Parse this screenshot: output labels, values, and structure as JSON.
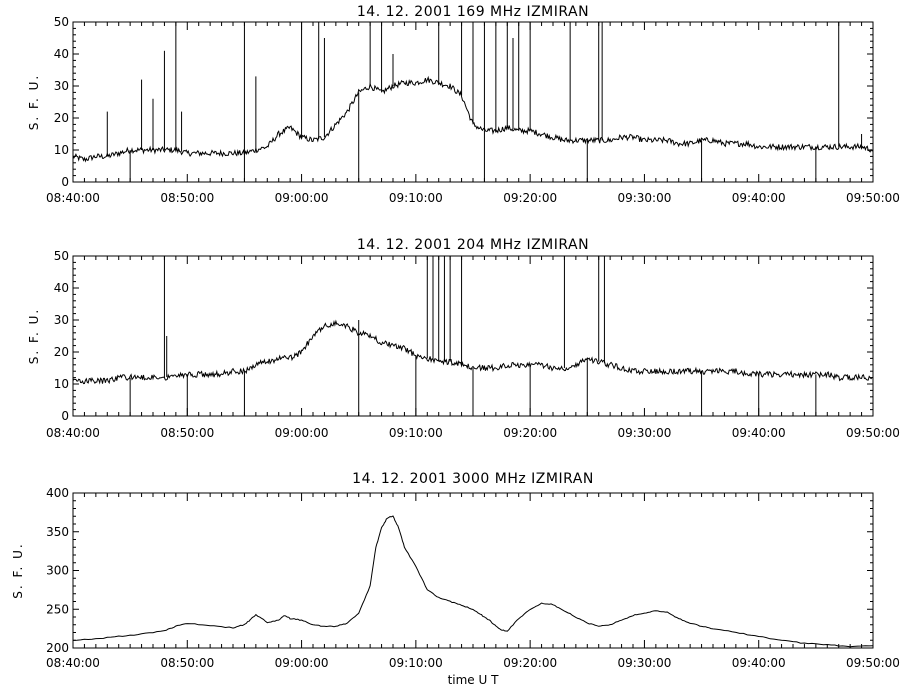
{
  "chart_data": [
    {
      "type": "line",
      "title": "14.  12.  2001    169 MHz    IZMIRAN",
      "ylabel": "S. F. U.",
      "xlabel": "",
      "ylim": [
        0,
        50
      ],
      "yticks": [
        0,
        10,
        20,
        30,
        40,
        50
      ],
      "xlim_minutes": [
        0,
        70
      ],
      "xticks": [
        "08:40:00",
        "08:50:00",
        "09:00:00",
        "09:10:00",
        "09:20:00",
        "09:30:00",
        "09:40:00",
        "09:50:00"
      ],
      "grid": false,
      "series": [
        {
          "values_x_minutes": [
            0,
            1,
            2,
            3,
            4,
            5,
            6,
            7,
            8,
            9,
            10,
            11,
            12,
            13,
            14,
            15,
            16,
            17,
            18,
            19,
            20,
            21,
            22,
            23,
            24,
            25,
            26,
            27,
            28,
            29,
            30,
            31,
            32,
            33,
            34,
            35,
            36,
            37,
            38,
            39,
            40,
            41,
            42,
            43,
            44,
            45,
            46,
            47,
            48,
            49,
            50,
            51,
            52,
            53,
            54,
            55,
            56,
            57,
            58,
            59,
            60,
            61,
            62,
            63,
            64,
            65,
            66,
            67,
            68,
            69,
            70
          ],
          "values_y": [
            8,
            7,
            8,
            8,
            9,
            10,
            10,
            10,
            10,
            10,
            9,
            9,
            9,
            9,
            9,
            9,
            10,
            11,
            15,
            17,
            14,
            13,
            14,
            18,
            22,
            28,
            30,
            28,
            30,
            31,
            31,
            32,
            31,
            30,
            27,
            18,
            16,
            16,
            17,
            16,
            16,
            15,
            14,
            13,
            13,
            13,
            13,
            13,
            14,
            14,
            13,
            13,
            13,
            12,
            12,
            13,
            13,
            12,
            12,
            12,
            11,
            11,
            11,
            11,
            11,
            11,
            11,
            11,
            11,
            11,
            10
          ]
        }
      ],
      "spikes_minutes_and_peak": [
        [
          3,
          22
        ],
        [
          6,
          32
        ],
        [
          7,
          26
        ],
        [
          8,
          41
        ],
        [
          9,
          50
        ],
        [
          9.5,
          22
        ],
        [
          15,
          50
        ],
        [
          16,
          33
        ],
        [
          20,
          50
        ],
        [
          21.5,
          50
        ],
        [
          22,
          45
        ],
        [
          26,
          50
        ],
        [
          27,
          50
        ],
        [
          28,
          40
        ],
        [
          32,
          50
        ],
        [
          34,
          50
        ],
        [
          35,
          50
        ],
        [
          36,
          50
        ],
        [
          37,
          50
        ],
        [
          38,
          50
        ],
        [
          38.5,
          45
        ],
        [
          39,
          50
        ],
        [
          40,
          50
        ],
        [
          43.5,
          50
        ],
        [
          46,
          50
        ],
        [
          46.3,
          50
        ],
        [
          67,
          50
        ],
        [
          69,
          15
        ]
      ]
    },
    {
      "type": "line",
      "title": "14.  12.  2001    204 MHz    IZMIRAN",
      "ylabel": "S. F. U.",
      "xlabel": "",
      "ylim": [
        0,
        50
      ],
      "yticks": [
        0,
        10,
        20,
        30,
        40,
        50
      ],
      "xlim_minutes": [
        0,
        70
      ],
      "xticks": [
        "08:40:00",
        "08:50:00",
        "09:00:00",
        "09:10:00",
        "09:20:00",
        "09:30:00",
        "09:40:00",
        "09:50:00"
      ],
      "grid": false,
      "series": [
        {
          "values_x_minutes": [
            0,
            1,
            2,
            3,
            4,
            5,
            6,
            7,
            8,
            9,
            10,
            11,
            12,
            13,
            14,
            15,
            16,
            17,
            18,
            19,
            20,
            21,
            22,
            23,
            24,
            25,
            26,
            27,
            28,
            29,
            30,
            31,
            32,
            33,
            34,
            35,
            36,
            37,
            38,
            39,
            40,
            41,
            42,
            43,
            44,
            45,
            46,
            47,
            48,
            49,
            50,
            51,
            52,
            53,
            54,
            55,
            56,
            57,
            58,
            59,
            60,
            61,
            62,
            63,
            64,
            65,
            66,
            67,
            68,
            69,
            70
          ],
          "values_y": [
            11,
            11,
            11,
            11,
            12,
            12,
            12,
            12,
            12,
            13,
            13,
            13,
            13,
            13,
            14,
            14,
            16,
            17,
            18,
            18,
            20,
            25,
            28,
            29,
            28,
            26,
            25,
            23,
            22,
            21,
            19,
            18,
            17,
            17,
            16,
            15,
            15,
            15,
            16,
            16,
            16,
            16,
            15,
            15,
            16,
            18,
            17,
            16,
            15,
            14,
            14,
            14,
            14,
            14,
            14,
            14,
            14,
            14,
            14,
            13,
            13,
            13,
            13,
            13,
            13,
            13,
            13,
            12,
            12,
            12,
            12
          ]
        }
      ],
      "spikes_minutes_and_peak": [
        [
          8,
          50
        ],
        [
          8.2,
          25
        ],
        [
          25,
          30
        ],
        [
          31,
          50
        ],
        [
          31.5,
          50
        ],
        [
          32,
          50
        ],
        [
          32.5,
          50
        ],
        [
          33,
          50
        ],
        [
          34,
          50
        ],
        [
          43,
          50
        ],
        [
          46,
          50
        ],
        [
          46.5,
          50
        ]
      ]
    },
    {
      "type": "line",
      "title": "14.  12.  2001    3000 MHz    IZMIRAN",
      "ylabel": "S. F. U.",
      "xlabel": "time   U T",
      "ylim": [
        200,
        400
      ],
      "yticks": [
        200,
        250,
        300,
        350,
        400
      ],
      "xlim_minutes": [
        0,
        70
      ],
      "xticks": [
        "08:40:00",
        "08:50:00",
        "09:00:00",
        "09:10:00",
        "09:20:00",
        "09:30:00",
        "09:40:00",
        "09:50:00"
      ],
      "grid": false,
      "series": [
        {
          "values_x_minutes": [
            0,
            2,
            4,
            6,
            8,
            9,
            10,
            12,
            14,
            15,
            15.5,
            16,
            17,
            18,
            18.5,
            19,
            20,
            21,
            22,
            23,
            24,
            25,
            26,
            26.5,
            27,
            27.5,
            28,
            28.5,
            29,
            30,
            31,
            32,
            33,
            34,
            35,
            35.5,
            36,
            36.5,
            37,
            37.5,
            38,
            39,
            40,
            41,
            42,
            43,
            44,
            45,
            46,
            47,
            48,
            49,
            50,
            51,
            52,
            53,
            54,
            55,
            56,
            58,
            60,
            62,
            64,
            66,
            68,
            70
          ],
          "values_y": [
            210,
            212,
            215,
            218,
            222,
            228,
            232,
            229,
            226,
            230,
            236,
            243,
            233,
            236,
            242,
            238,
            236,
            230,
            228,
            228,
            232,
            245,
            280,
            330,
            355,
            368,
            370,
            355,
            330,
            305,
            275,
            265,
            260,
            255,
            250,
            245,
            240,
            235,
            228,
            223,
            222,
            238,
            250,
            258,
            256,
            248,
            240,
            232,
            228,
            230,
            236,
            242,
            245,
            248,
            246,
            238,
            232,
            228,
            225,
            220,
            215,
            210,
            206,
            204,
            202,
            203
          ]
        }
      ]
    }
  ]
}
